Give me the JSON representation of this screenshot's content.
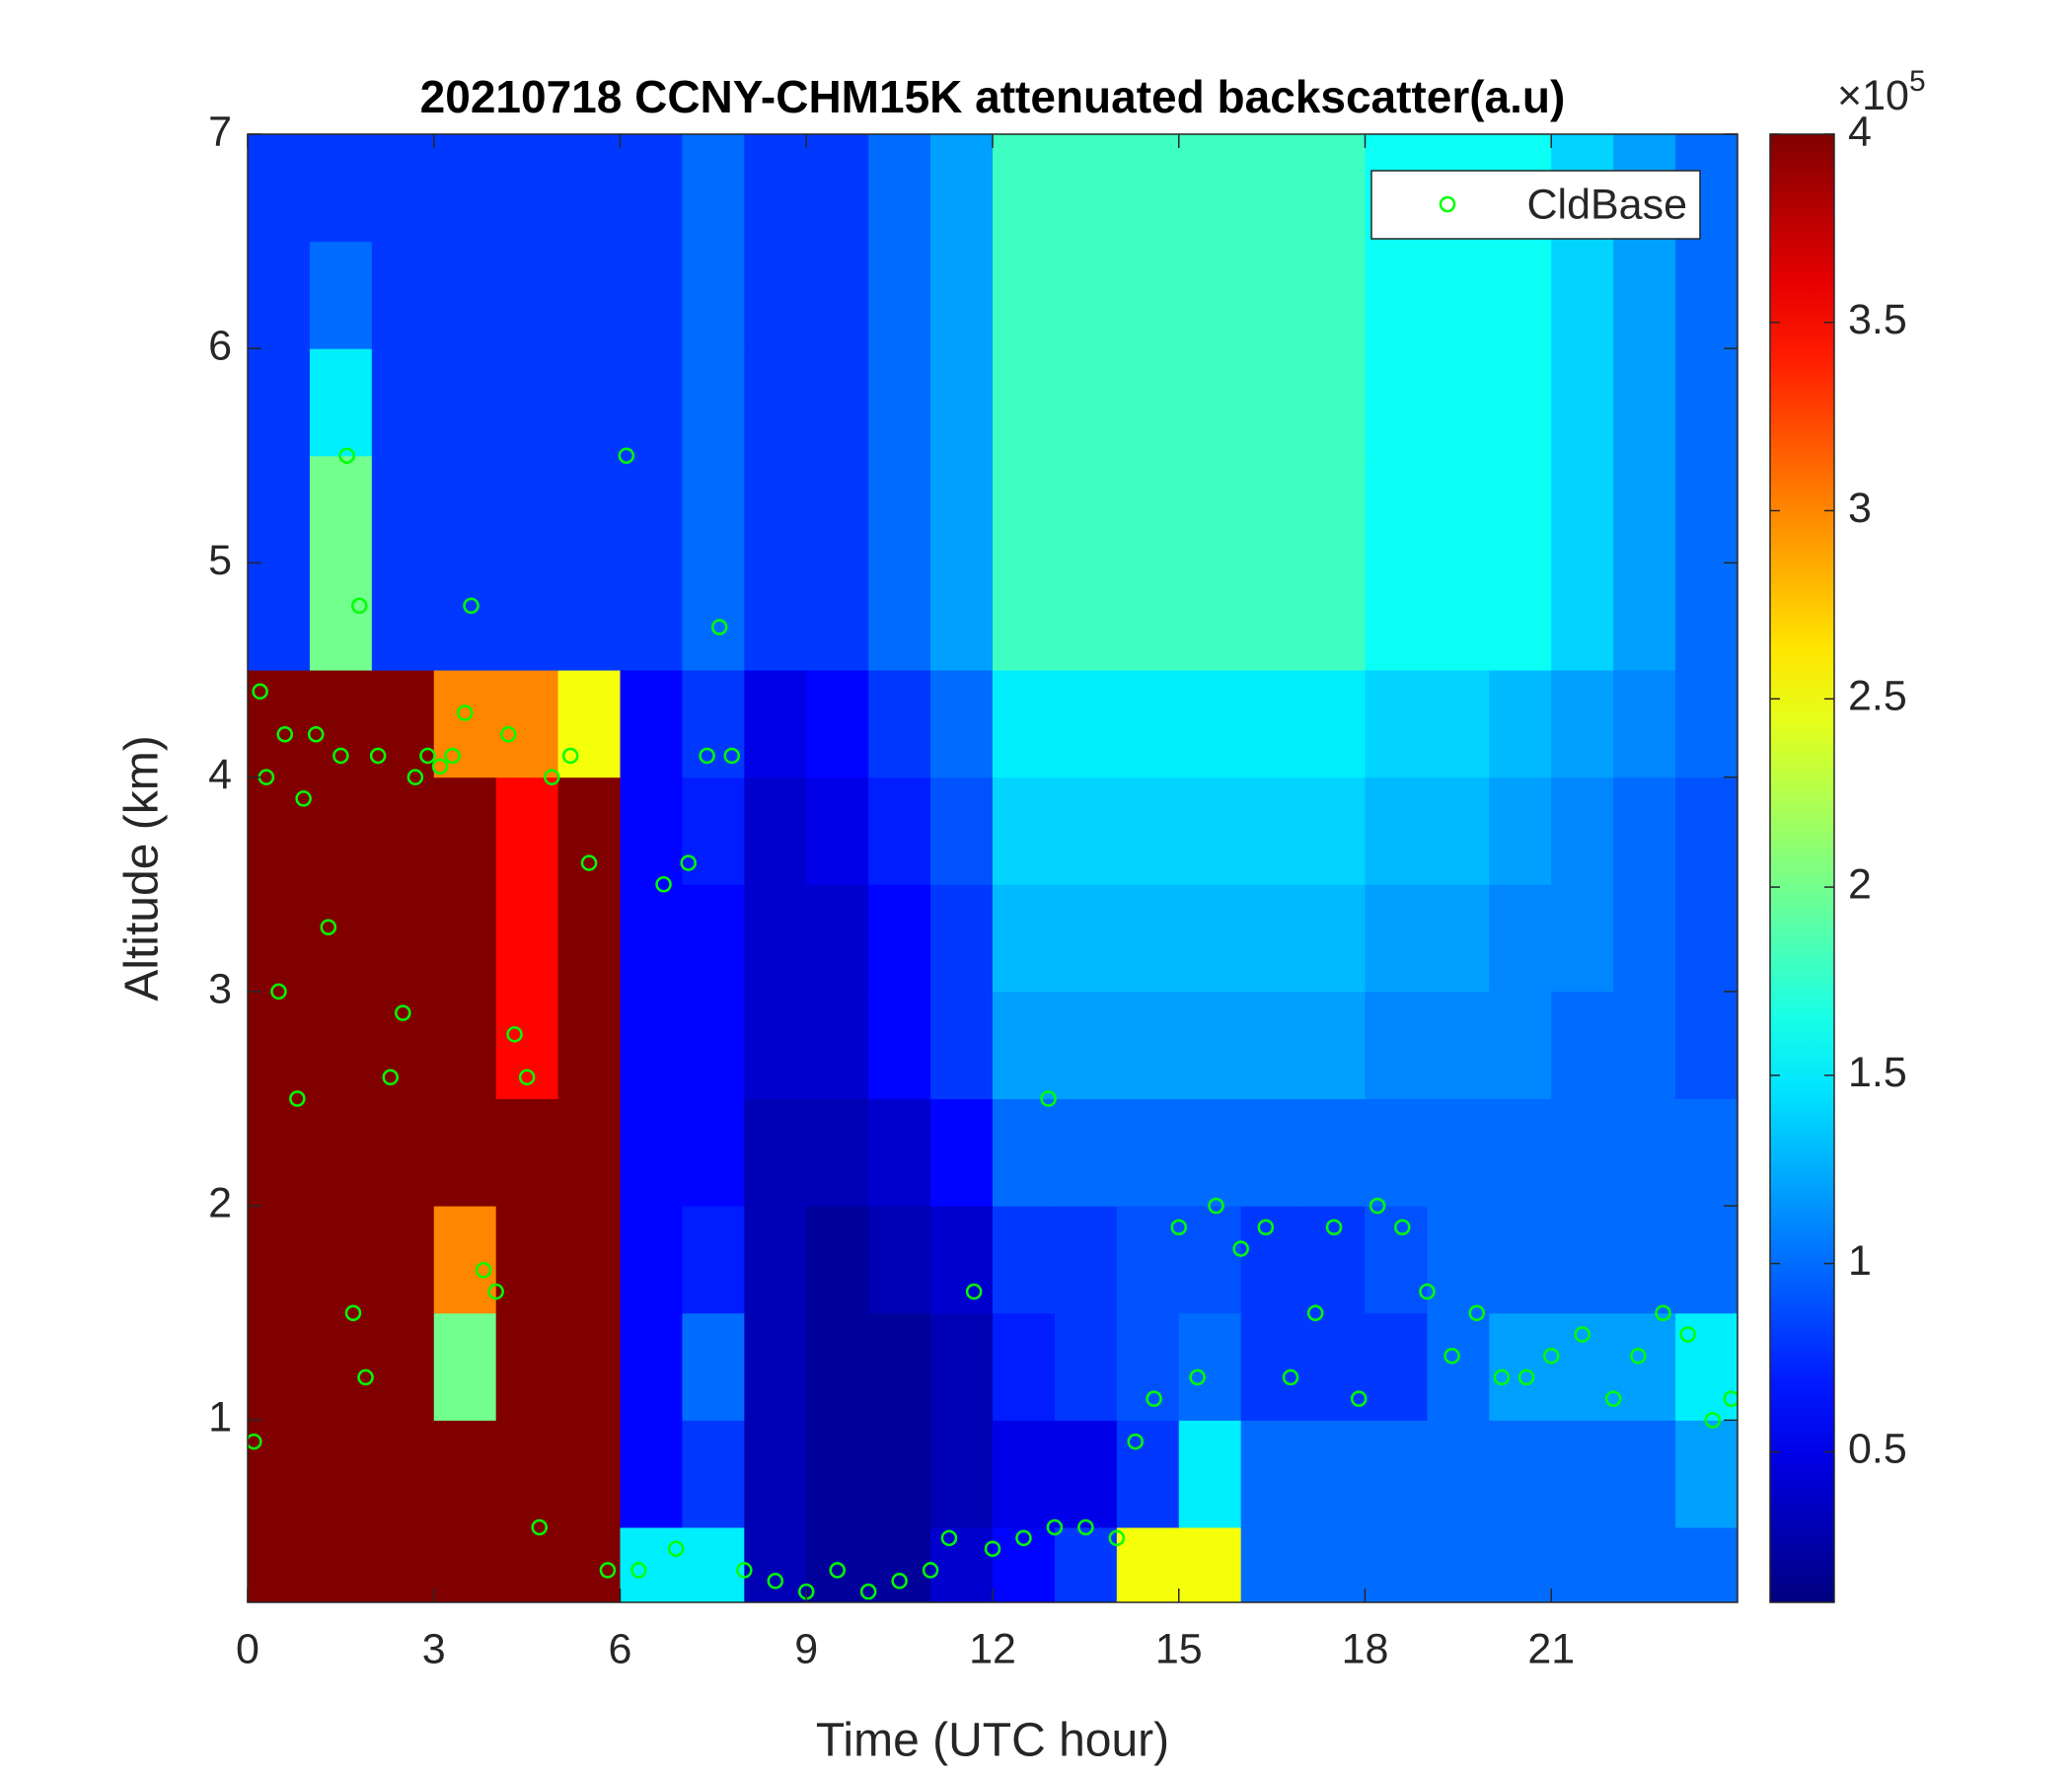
{
  "chart_data": {
    "type": "heatmap",
    "title": "20210718 CCNY-CHM15K attenuated backscatter(a.u)",
    "xlabel": "Time (UTC hour)",
    "ylabel": "Altitude (km)",
    "colormap": "jet",
    "x_edges": [
      0,
      1,
      2,
      3,
      4,
      5,
      6,
      7,
      8,
      9,
      10,
      11,
      12,
      13,
      14,
      15,
      16,
      17,
      18,
      19,
      20,
      21,
      22,
      23,
      24
    ],
    "y_edges": [
      0.15,
      0.5,
      1,
      1.5,
      2,
      2.5,
      3,
      3.5,
      4,
      4.5,
      5,
      5.5,
      6,
      6.5,
      7
    ],
    "z": [
      [
        4,
        4,
        4,
        4,
        4,
        4,
        1.5,
        1.5,
        0.3,
        0.2,
        0.2,
        0.4,
        0.6,
        0.8,
        2.5,
        2.5,
        1,
        1,
        1,
        1,
        1,
        1,
        1,
        1
      ],
      [
        4,
        4,
        4,
        4,
        4,
        4,
        0.6,
        0.8,
        0.3,
        0.2,
        0.2,
        0.3,
        0.5,
        0.5,
        0.8,
        1.5,
        1,
        1,
        1,
        1,
        1,
        1,
        1,
        1.2
      ],
      [
        4,
        4,
        4,
        2,
        4,
        4,
        0.6,
        1,
        0.3,
        0.2,
        0.2,
        0.3,
        0.7,
        0.8,
        0.9,
        1,
        0.8,
        0.8,
        0.8,
        1,
        1.2,
        1.2,
        1.2,
        1.5
      ],
      [
        4,
        4,
        4,
        3,
        4,
        4,
        0.6,
        0.7,
        0.3,
        0.2,
        0.3,
        0.4,
        0.8,
        0.8,
        0.9,
        0.9,
        0.8,
        0.8,
        0.9,
        1,
        1,
        1,
        1,
        1
      ],
      [
        4,
        4,
        4,
        4,
        4,
        4,
        0.6,
        0.6,
        0.3,
        0.3,
        0.4,
        0.6,
        1,
        1,
        1,
        1,
        1,
        1,
        1,
        1,
        1,
        1,
        1,
        1
      ],
      [
        4,
        4,
        4,
        4,
        3.5,
        4,
        0.6,
        0.6,
        0.4,
        0.4,
        0.6,
        0.8,
        1.2,
        1.2,
        1.2,
        1.2,
        1.2,
        1.2,
        1.1,
        1.1,
        1.1,
        1,
        1,
        0.9
      ],
      [
        4,
        4,
        4,
        4,
        3.5,
        4,
        0.6,
        0.6,
        0.4,
        0.4,
        0.6,
        0.8,
        1.3,
        1.3,
        1.3,
        1.3,
        1.3,
        1.3,
        1.2,
        1.2,
        1.1,
        1.1,
        1,
        0.9
      ],
      [
        4,
        4,
        4,
        4,
        3.5,
        4,
        0.6,
        0.7,
        0.4,
        0.5,
        0.7,
        0.9,
        1.4,
        1.4,
        1.4,
        1.4,
        1.4,
        1.4,
        1.3,
        1.3,
        1.2,
        1.1,
        1,
        0.9
      ],
      [
        4,
        4,
        4,
        3,
        3,
        2.5,
        0.6,
        0.8,
        0.5,
        0.6,
        0.8,
        1,
        1.5,
        1.5,
        1.5,
        1.5,
        1.5,
        1.5,
        1.4,
        1.4,
        1.3,
        1.2,
        1.1,
        1
      ],
      [
        0.8,
        2,
        0.8,
        0.8,
        0.8,
        0.8,
        0.8,
        1,
        0.8,
        0.8,
        1,
        1.2,
        1.8,
        1.8,
        1.8,
        1.8,
        1.8,
        1.8,
        1.6,
        1.6,
        1.6,
        1.4,
        1.2,
        1
      ],
      [
        0.8,
        2,
        0.8,
        0.8,
        0.8,
        0.8,
        0.8,
        1,
        0.8,
        0.8,
        1,
        1.2,
        1.8,
        1.8,
        1.8,
        1.8,
        1.8,
        1.8,
        1.6,
        1.6,
        1.6,
        1.4,
        1.2,
        1
      ],
      [
        0.8,
        1.5,
        0.8,
        0.8,
        0.8,
        0.8,
        0.8,
        1,
        0.8,
        0.8,
        1,
        1.2,
        1.8,
        1.8,
        1.8,
        1.8,
        1.8,
        1.8,
        1.6,
        1.6,
        1.6,
        1.4,
        1.2,
        1
      ],
      [
        0.8,
        1,
        0.8,
        0.8,
        0.8,
        0.8,
        0.8,
        1,
        0.8,
        0.8,
        1,
        1.2,
        1.8,
        1.8,
        1.8,
        1.8,
        1.8,
        1.8,
        1.6,
        1.6,
        1.6,
        1.4,
        1.2,
        1
      ],
      [
        0.8,
        0.8,
        0.8,
        0.8,
        0.8,
        0.8,
        0.8,
        1,
        0.8,
        0.8,
        1,
        1.2,
        1.8,
        1.8,
        1.8,
        1.8,
        1.8,
        1.8,
        1.6,
        1.6,
        1.6,
        1.4,
        1.2,
        1
      ]
    ],
    "xlim": [
      0,
      24
    ],
    "ylim": [
      0.15,
      7
    ],
    "xticks": [
      0,
      3,
      6,
      9,
      12,
      15,
      18,
      21
    ],
    "yticks": [
      1,
      2,
      3,
      4,
      5,
      6,
      7
    ],
    "clim": [
      0.1,
      4
    ],
    "colorbar_ticks": [
      0.5,
      1,
      1.5,
      2,
      2.5,
      3,
      3.5,
      4
    ],
    "colorbar_multiplier": "×10",
    "colorbar_exponent": "5",
    "legend": "upper right",
    "series": [
      {
        "name": "CldBase",
        "type": "scatter",
        "color": "#00ff00",
        "x": [
          0.1,
          0.2,
          0.3,
          0.5,
          0.6,
          0.8,
          0.9,
          1.1,
          1.3,
          1.5,
          1.6,
          1.7,
          1.8,
          1.9,
          2.1,
          2.3,
          2.5,
          2.7,
          2.9,
          3.1,
          3.3,
          3.5,
          3.6,
          3.8,
          4.0,
          4.2,
          4.3,
          4.5,
          4.7,
          4.9,
          5.2,
          5.5,
          5.8,
          6.1,
          6.3,
          6.7,
          6.9,
          7.1,
          7.4,
          7.6,
          7.8,
          8.0,
          8.5,
          9.0,
          9.5,
          10.0,
          10.5,
          11.0,
          11.3,
          11.7,
          12.0,
          12.5,
          12.9,
          13.0,
          13.5,
          14.0,
          14.3,
          14.6,
          15.0,
          15.3,
          15.6,
          16.0,
          16.4,
          16.8,
          17.2,
          17.5,
          17.9,
          18.2,
          18.6,
          19.0,
          19.4,
          19.8,
          20.2,
          20.6,
          21.0,
          21.5,
          22.0,
          22.4,
          22.8,
          23.2,
          23.6,
          23.9
        ],
        "y": [
          0.9,
          4.4,
          4.0,
          3.0,
          4.2,
          2.5,
          3.9,
          4.2,
          3.3,
          4.1,
          5.5,
          1.5,
          4.8,
          1.2,
          4.1,
          2.6,
          2.9,
          4.0,
          4.1,
          4.05,
          4.1,
          4.3,
          4.8,
          1.7,
          1.6,
          4.2,
          2.8,
          2.6,
          0.5,
          4.0,
          4.1,
          3.6,
          0.3,
          5.5,
          0.3,
          3.5,
          0.4,
          3.6,
          4.1,
          4.7,
          4.1,
          0.3,
          0.25,
          0.2,
          0.3,
          0.2,
          0.25,
          0.3,
          0.45,
          1.6,
          0.4,
          0.45,
          2.5,
          0.5,
          0.5,
          0.45,
          0.9,
          1.1,
          1.9,
          1.2,
          2.0,
          1.8,
          1.9,
          1.2,
          1.5,
          1.9,
          1.1,
          2.0,
          1.9,
          1.6,
          1.3,
          1.5,
          1.2,
          1.2,
          1.3,
          1.4,
          1.1,
          1.3,
          1.5,
          1.4,
          1.0,
          1.1
        ]
      }
    ]
  }
}
